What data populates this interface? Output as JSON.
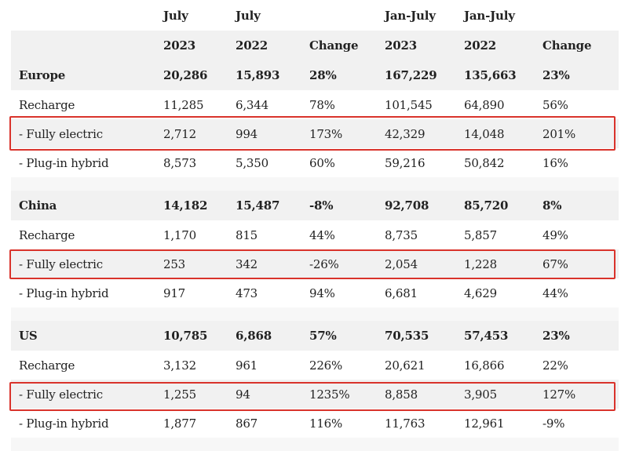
{
  "header": {
    "row1": [
      "",
      "July",
      "July",
      "",
      "Jan-July",
      "Jan-July",
      ""
    ],
    "row2": [
      "",
      "2023",
      "2022",
      "Change",
      "2023",
      "2022",
      "Change"
    ]
  },
  "sections": [
    {
      "region": [
        "Europe",
        "20,286",
        "15,893",
        "28%",
        "167,229",
        "135,663",
        "23%"
      ],
      "recharge": [
        "Recharge",
        "11,285",
        "6,344",
        "78%",
        "101,545",
        "64,890",
        "56%"
      ],
      "fully_electric": [
        " - Fully electric",
        "2,712",
        "994",
        "173%",
        "42,329",
        "14,048",
        "201%"
      ],
      "plugin_hybrid": [
        " - Plug-in hybrid",
        "8,573",
        "5,350",
        "60%",
        "59,216",
        "50,842",
        "16%"
      ]
    },
    {
      "region": [
        "China",
        "14,182",
        "15,487",
        "-8%",
        "92,708",
        "85,720",
        "8%"
      ],
      "recharge": [
        "Recharge",
        "1,170",
        "815",
        "44%",
        "8,735",
        "5,857",
        "49%"
      ],
      "fully_electric": [
        " - Fully electric",
        "253",
        "342",
        "-26%",
        "2,054",
        "1,228",
        "67%"
      ],
      "plugin_hybrid": [
        " - Plug-in hybrid",
        "917",
        "473",
        "94%",
        "6,681",
        "4,629",
        "44%"
      ]
    },
    {
      "region": [
        "US",
        "10,785",
        "6,868",
        "57%",
        "70,535",
        "57,453",
        "23%"
      ],
      "recharge": [
        "Recharge",
        "3,132",
        "961",
        "226%",
        "20,621",
        "16,866",
        "22%"
      ],
      "fully_electric": [
        " - Fully electric",
        "1,255",
        "94",
        "1235%",
        "8,858",
        "3,905",
        "127%"
      ],
      "plugin_hybrid": [
        " - Plug-in hybrid",
        "1,877",
        "867",
        "116%",
        "11,763",
        "12,961",
        "-9%"
      ]
    }
  ],
  "highlight_color": "#d9332b"
}
